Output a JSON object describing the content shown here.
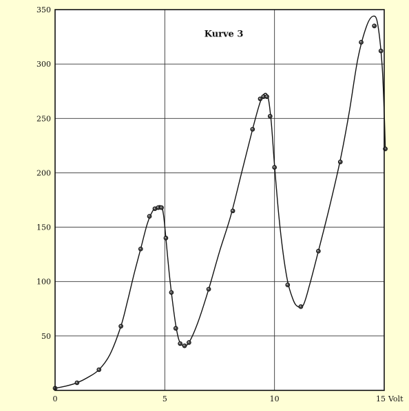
{
  "chart_data": {
    "type": "line",
    "title": "",
    "xlabel": "",
    "ylabel": "",
    "xlim": [
      0,
      15
    ],
    "ylim": [
      0,
      350
    ],
    "grid": true,
    "x_ticks": [
      {
        "value": 0,
        "label": "0"
      },
      {
        "value": 5,
        "label": "5"
      },
      {
        "value": 10,
        "label": "10"
      },
      {
        "value": 15,
        "label": "15"
      }
    ],
    "x_unit": "Volt",
    "y_ticks": [
      {
        "value": 0,
        "label": ""
      },
      {
        "value": 50,
        "label": "50"
      },
      {
        "value": 100,
        "label": "100"
      },
      {
        "value": 150,
        "label": "150"
      },
      {
        "value": 200,
        "label": "200"
      },
      {
        "value": 250,
        "label": "250"
      },
      {
        "value": 300,
        "label": "300"
      },
      {
        "value": 350,
        "label": "350"
      }
    ],
    "annotation": "Kurve 3",
    "colors": {
      "background": "#ffffd6",
      "plot_area": "#ffffff",
      "ink": "#111111",
      "grid": "#333333"
    },
    "series": [
      {
        "name": "",
        "points": [
          [
            0.0,
            2
          ],
          [
            1.0,
            7
          ],
          [
            2.0,
            19
          ],
          [
            3.0,
            59
          ],
          [
            3.9,
            130
          ],
          [
            4.3,
            160
          ],
          [
            4.55,
            167
          ],
          [
            4.7,
            168
          ],
          [
            4.85,
            168
          ],
          [
            5.05,
            140
          ],
          [
            5.3,
            90
          ],
          [
            5.5,
            57
          ],
          [
            5.7,
            43
          ],
          [
            5.9,
            41
          ],
          [
            6.1,
            44
          ],
          [
            7.0,
            93
          ],
          [
            8.1,
            165
          ],
          [
            9.0,
            240
          ],
          [
            9.35,
            268
          ],
          [
            9.5,
            270
          ],
          [
            9.65,
            270
          ],
          [
            9.8,
            252
          ],
          [
            10.0,
            205
          ],
          [
            10.6,
            97
          ],
          [
            11.2,
            77
          ],
          [
            12.0,
            128
          ],
          [
            13.0,
            210
          ],
          [
            13.95,
            320
          ],
          [
            14.55,
            335
          ],
          [
            14.85,
            312
          ],
          [
            15.05,
            222
          ]
        ],
        "curve": [
          [
            0.0,
            2
          ],
          [
            0.5,
            4
          ],
          [
            1.0,
            7
          ],
          [
            1.5,
            12
          ],
          [
            2.0,
            19
          ],
          [
            2.5,
            33
          ],
          [
            3.0,
            59
          ],
          [
            3.3,
            82
          ],
          [
            3.6,
            107
          ],
          [
            3.9,
            130
          ],
          [
            4.2,
            153
          ],
          [
            4.45,
            165
          ],
          [
            4.65,
            169
          ],
          [
            4.85,
            169
          ],
          [
            4.95,
            160
          ],
          [
            5.05,
            140
          ],
          [
            5.2,
            108
          ],
          [
            5.35,
            82
          ],
          [
            5.5,
            60
          ],
          [
            5.65,
            46
          ],
          [
            5.85,
            41
          ],
          [
            6.1,
            44
          ],
          [
            6.5,
            62
          ],
          [
            7.0,
            93
          ],
          [
            7.5,
            128
          ],
          [
            8.0,
            160
          ],
          [
            8.5,
            200
          ],
          [
            9.0,
            240
          ],
          [
            9.3,
            262
          ],
          [
            9.5,
            272
          ],
          [
            9.7,
            270
          ],
          [
            9.85,
            247
          ],
          [
            10.0,
            207
          ],
          [
            10.2,
            160
          ],
          [
            10.4,
            125
          ],
          [
            10.6,
            100
          ],
          [
            10.8,
            86
          ],
          [
            11.0,
            78
          ],
          [
            11.3,
            78
          ],
          [
            11.6,
            97
          ],
          [
            12.0,
            128
          ],
          [
            12.5,
            168
          ],
          [
            13.0,
            212
          ],
          [
            13.4,
            255
          ],
          [
            13.8,
            305
          ],
          [
            14.2,
            335
          ],
          [
            14.5,
            344
          ],
          [
            14.7,
            337
          ],
          [
            14.9,
            300
          ],
          [
            15.0,
            255
          ],
          [
            15.05,
            222
          ]
        ]
      }
    ]
  }
}
